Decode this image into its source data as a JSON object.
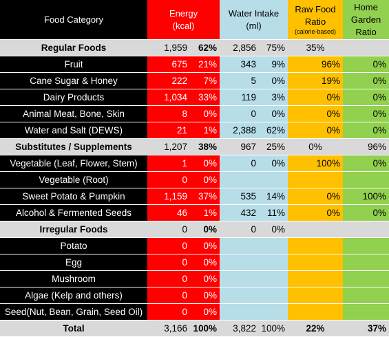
{
  "headers": {
    "category": "Food Category",
    "energy": [
      "Energy",
      "(kcal)"
    ],
    "water": [
      "Water Intake",
      "(ml)"
    ],
    "raw": [
      "Raw Food",
      "Ratio"
    ],
    "raw_note": "(calorie-based)",
    "garden": [
      "Home",
      "Garden",
      "Ratio"
    ]
  },
  "rows": [
    {
      "type": "group",
      "name": "Regular Foods",
      "e": "1,959",
      "ep": "62%",
      "w": "2,856",
      "wp": "75%",
      "raw": "35%",
      "garden": ""
    },
    {
      "type": "item",
      "name": "Fruit",
      "e": "675",
      "ep": "21%",
      "w": "343",
      "wp": "9%",
      "raw": "96%",
      "garden": "0%"
    },
    {
      "type": "item",
      "name": "Cane Sugar & Honey",
      "e": "222",
      "ep": "7%",
      "w": "5",
      "wp": "0%",
      "raw": "19%",
      "garden": "0%"
    },
    {
      "type": "item",
      "name": "Dairy Products",
      "e": "1,034",
      "ep": "33%",
      "w": "119",
      "wp": "3%",
      "raw": "0%",
      "garden": "0%"
    },
    {
      "type": "item",
      "name": "Animal Meat, Bone, Skin",
      "e": "8",
      "ep": "0%",
      "w": "0",
      "wp": "0%",
      "raw": "0%",
      "garden": "0%"
    },
    {
      "type": "item",
      "name": "Water and Salt (DEWS)",
      "e": "21",
      "ep": "1%",
      "w": "2,388",
      "wp": "62%",
      "raw": "0%",
      "garden": "0%"
    },
    {
      "type": "group",
      "name": "Substitutes / Supplements",
      "e": "1,207",
      "ep": "38%",
      "w": "967",
      "wp": "25%",
      "raw": "0%",
      "garden": "96%"
    },
    {
      "type": "item",
      "name": "Vegetable (Leaf, Flower, Stem)",
      "e": "1",
      "ep": "0%",
      "w": "0",
      "wp": "0%",
      "raw": "100%",
      "garden": "0%"
    },
    {
      "type": "item",
      "name": "Vegetable (Root)",
      "e": "0",
      "ep": "0%",
      "w": "",
      "wp": "",
      "raw": "",
      "garden": ""
    },
    {
      "type": "item",
      "name": "Sweet Potato & Pumpkin",
      "e": "1,159",
      "ep": "37%",
      "w": "535",
      "wp": "14%",
      "raw": "0%",
      "garden": "100%"
    },
    {
      "type": "item",
      "name": "Alcohol & Fermented Seeds",
      "e": "46",
      "ep": "1%",
      "w": "432",
      "wp": "11%",
      "raw": "0%",
      "garden": "0%"
    },
    {
      "type": "group",
      "name": "Irregular Foods",
      "e": "0",
      "ep": "0%",
      "w": "0",
      "wp": "0%",
      "raw": "",
      "garden": ""
    },
    {
      "type": "item",
      "name": "Potato",
      "e": "0",
      "ep": "0%",
      "w": "",
      "wp": "",
      "raw": "",
      "garden": ""
    },
    {
      "type": "item",
      "name": "Egg",
      "e": "0",
      "ep": "0%",
      "w": "",
      "wp": "",
      "raw": "",
      "garden": ""
    },
    {
      "type": "item",
      "name": "Mushroom",
      "e": "0",
      "ep": "0%",
      "w": "",
      "wp": "",
      "raw": "",
      "garden": ""
    },
    {
      "type": "item",
      "name": "Algae (Kelp and others)",
      "e": "0",
      "ep": "0%",
      "w": "",
      "wp": "",
      "raw": "",
      "garden": ""
    },
    {
      "type": "item",
      "name": "Seed(Nut, Bean, Grain, Seed Oil)",
      "e": "0",
      "ep": "0%",
      "w": "",
      "wp": "",
      "raw": "",
      "garden": ""
    },
    {
      "type": "total",
      "name": "Total",
      "e": "3,166",
      "ep": "100%",
      "w": "3,822",
      "wp": "100%",
      "raw": "22%",
      "garden": "37%"
    }
  ],
  "colors": {
    "black": "#000000",
    "red": "#ff0000",
    "blue": "#b7dde8",
    "orange": "#ffc000",
    "green": "#92d050",
    "gray": "#d9d9d9"
  }
}
